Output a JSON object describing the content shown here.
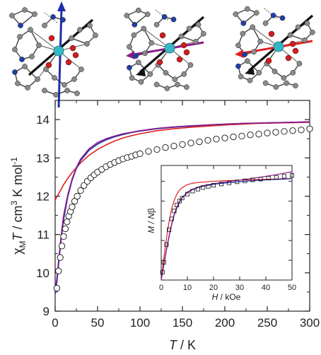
{
  "figure": {
    "structures": [
      {
        "name": "",
        "axis_color": "#1f2fa8"
      },
      {
        "name": "",
        "axis_color": "#8b1a8b"
      },
      {
        "name": "",
        "axis_color": "#e02020"
      }
    ],
    "atom_colors": {
      "metal": "#35b8c6",
      "oxygen": "#d41a1a",
      "nitrogen": "#1f3fa8",
      "carbon": "#8a8a8a"
    }
  },
  "chart_data": [
    {
      "type": "line",
      "title": "",
      "xlabel_parts": [
        "T",
        " / K"
      ],
      "ylabel_parts": [
        "χ",
        "M",
        "T",
        " / cm",
        "3",
        " K mol",
        "-1"
      ],
      "xlim": [
        0,
        300
      ],
      "ylim": [
        9,
        14.5
      ],
      "xticks": [
        0,
        50,
        100,
        150,
        200,
        250,
        300
      ],
      "yticks": [
        9,
        10,
        11,
        12,
        13,
        14
      ],
      "grid": false,
      "series": [
        {
          "kind": "scatter",
          "marker": "open-circle",
          "color": "#111111",
          "x": [
            2,
            4,
            6,
            8,
            10,
            12,
            14,
            16,
            18,
            20,
            23,
            26,
            30,
            34,
            38,
            42,
            46,
            50,
            55,
            60,
            65,
            70,
            75,
            80,
            85,
            90,
            95,
            100,
            110,
            120,
            130,
            140,
            150,
            160,
            170,
            180,
            190,
            200,
            210,
            220,
            230,
            240,
            250,
            260,
            270,
            280,
            290,
            300
          ],
          "y": [
            9.6,
            10.05,
            10.4,
            10.7,
            10.95,
            11.15,
            11.33,
            11.48,
            11.6,
            11.72,
            11.87,
            12.0,
            12.15,
            12.28,
            12.39,
            12.48,
            12.56,
            12.63,
            12.7,
            12.77,
            12.83,
            12.88,
            12.93,
            12.97,
            13.01,
            13.04,
            13.08,
            13.11,
            13.17,
            13.22,
            13.27,
            13.31,
            13.35,
            13.39,
            13.42,
            13.46,
            13.49,
            13.52,
            13.55,
            13.57,
            13.6,
            13.62,
            13.65,
            13.67,
            13.69,
            13.71,
            13.73,
            13.76
          ]
        },
        {
          "kind": "line",
          "color": "#e02020",
          "x": [
            0,
            5,
            10,
            15,
            20,
            30,
            40,
            50,
            60,
            70,
            80,
            90,
            100,
            120,
            140,
            160,
            180,
            200,
            220,
            240,
            260,
            280,
            300
          ],
          "y": [
            11.9,
            12.1,
            12.3,
            12.47,
            12.62,
            12.87,
            13.07,
            13.22,
            13.34,
            13.44,
            13.52,
            13.58,
            13.63,
            13.71,
            13.76,
            13.8,
            13.83,
            13.86,
            13.88,
            13.9,
            13.91,
            13.92,
            13.93
          ]
        },
        {
          "kind": "line",
          "color": "#1f2fa8",
          "x": [
            0,
            2,
            4,
            6,
            8,
            10,
            15,
            20,
            25,
            30,
            40,
            50,
            60,
            70,
            80,
            90,
            100,
            120,
            140,
            160,
            180,
            200,
            220,
            240,
            260,
            280,
            300
          ],
          "y": [
            9.45,
            9.75,
            10.2,
            10.65,
            11.05,
            11.4,
            12.0,
            12.42,
            12.72,
            12.93,
            13.2,
            13.36,
            13.47,
            13.55,
            13.61,
            13.66,
            13.7,
            13.76,
            13.8,
            13.83,
            13.86,
            13.88,
            13.9,
            13.91,
            13.92,
            13.93,
            13.94
          ]
        },
        {
          "kind": "line",
          "color": "#8b1a8b",
          "x": [
            0,
            2,
            4,
            6,
            8,
            10,
            15,
            20,
            25,
            30,
            40,
            50,
            60,
            70,
            80,
            90,
            100,
            120,
            140,
            160,
            180,
            200,
            220,
            240,
            260,
            280,
            300
          ],
          "y": [
            9.55,
            9.85,
            10.3,
            10.75,
            11.15,
            11.5,
            12.05,
            12.45,
            12.75,
            12.97,
            13.24,
            13.4,
            13.5,
            13.57,
            13.63,
            13.67,
            13.71,
            13.77,
            13.81,
            13.84,
            13.86,
            13.88,
            13.9,
            13.91,
            13.92,
            13.93,
            13.94
          ]
        }
      ]
    },
    {
      "type": "line",
      "title": "",
      "xlabel_parts": [
        "H",
        " / kOe"
      ],
      "ylabel_parts": [
        "M",
        " / N",
        "β"
      ],
      "xlim": [
        0,
        50
      ],
      "xticks": [
        0,
        10,
        20,
        30,
        40,
        50
      ],
      "grid": false,
      "series": [
        {
          "kind": "scatter",
          "marker": "open-square",
          "color": "#111111",
          "x": [
            0.5,
            1,
            2,
            3,
            4,
            5,
            6,
            7,
            8,
            10,
            12,
            14,
            16,
            18,
            20,
            23,
            26,
            29,
            32,
            35,
            38,
            41,
            44,
            47,
            50
          ],
          "y": [
            0.4,
            0.9,
            1.8,
            2.55,
            3.1,
            3.5,
            3.8,
            4.0,
            4.15,
            4.35,
            4.5,
            4.6,
            4.68,
            4.74,
            4.8,
            4.86,
            4.92,
            4.97,
            5.02,
            5.07,
            5.11,
            5.16,
            5.2,
            5.25,
            5.3
          ]
        },
        {
          "kind": "line",
          "color": "#e02020",
          "x": [
            0,
            1,
            2,
            3,
            4,
            5,
            6,
            7,
            8,
            10,
            12,
            15,
            20,
            25,
            30,
            35,
            40,
            45,
            50
          ],
          "y": [
            0,
            1.1,
            2.1,
            2.95,
            3.6,
            4.05,
            4.35,
            4.55,
            4.68,
            4.83,
            4.9,
            4.95,
            5.0,
            5.03,
            5.06,
            5.08,
            5.1,
            5.12,
            5.14
          ]
        },
        {
          "kind": "line",
          "color": "#1f2fa8",
          "x": [
            0,
            1,
            2,
            3,
            4,
            5,
            6,
            7,
            8,
            10,
            12,
            15,
            20,
            25,
            30,
            35,
            40,
            45,
            50
          ],
          "y": [
            0,
            0.75,
            1.5,
            2.2,
            2.8,
            3.3,
            3.65,
            3.95,
            4.15,
            4.42,
            4.58,
            4.72,
            4.85,
            4.92,
            4.98,
            5.03,
            5.07,
            5.1,
            5.13
          ]
        },
        {
          "kind": "line",
          "color": "#8b1a8b",
          "x": [
            0,
            1,
            2,
            3,
            4,
            5,
            6,
            7,
            8,
            10,
            12,
            15,
            20,
            25,
            30,
            35,
            40,
            45,
            50
          ],
          "y": [
            0,
            0.78,
            1.55,
            2.25,
            2.85,
            3.35,
            3.7,
            3.98,
            4.18,
            4.45,
            4.6,
            4.75,
            4.88,
            4.97,
            5.06,
            5.15,
            5.25,
            5.36,
            5.48
          ]
        }
      ]
    }
  ]
}
